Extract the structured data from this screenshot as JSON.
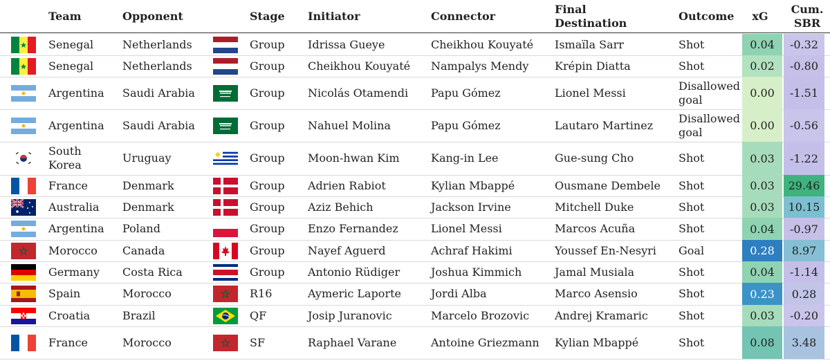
{
  "headers": {
    "team": "Team",
    "opponent": "Opponent",
    "stage": "Stage",
    "initiator": "Initiator",
    "connector": "Connector",
    "final_destination": "Final Destination",
    "outcome": "Outcome",
    "xg": "xG",
    "cum_sbr": "Cum. SBR"
  },
  "rows": [
    {
      "team": "Senegal",
      "team_flag": "senegal-flag-icon",
      "opponent": "Netherlands",
      "opp_flag": "netherlands-flag-icon",
      "stage": "Group",
      "initiator": "Idrissa Gueye",
      "connector": "Cheikhou Kouyaté",
      "final_destination": "Ismaïla Sarr",
      "outcome": "Shot",
      "xg": "0.04",
      "cum_sbr": "-0.32",
      "xg_color": "#8fd3b2",
      "sbr_color": "#c9c4ea"
    },
    {
      "team": "Senegal",
      "team_flag": "senegal-flag-icon",
      "opponent": "Netherlands",
      "opp_flag": "netherlands-flag-icon",
      "stage": "Group",
      "initiator": "Cheikhou Kouyaté",
      "connector": "Nampalys Mendy",
      "final_destination": "Krépin Diatta",
      "outcome": "Shot",
      "xg": "0.02",
      "cum_sbr": "-0.80",
      "xg_color": "#b2e2c0",
      "sbr_color": "#c6c0e8"
    },
    {
      "team": "Argentina",
      "team_flag": "argentina-flag-icon",
      "opponent": "Saudi Arabia",
      "opp_flag": "saudi-arabia-flag-icon",
      "stage": "Group",
      "initiator": "Nicolás Otamendi",
      "connector": "Papu Gómez",
      "final_destination": "Lionel Messi",
      "outcome": "Disallowed goal",
      "xg": "0.00",
      "cum_sbr": "-1.51",
      "xg_color": "#d6efc8",
      "sbr_color": "#c4bfe8"
    },
    {
      "team": "Argentina",
      "team_flag": "argentina-flag-icon",
      "opponent": "Saudi Arabia",
      "opp_flag": "saudi-arabia-flag-icon",
      "stage": "Group",
      "initiator": "Nahuel Molina",
      "connector": "Papu Gómez",
      "final_destination": "Lautaro Martinez",
      "outcome": "Disallowed goal",
      "xg": "0.00",
      "cum_sbr": "-0.56",
      "xg_color": "#d6efc8",
      "sbr_color": "#c9c4ea"
    },
    {
      "team": "South Korea",
      "team_flag": "south-korea-flag-icon",
      "opponent": "Uruguay",
      "opp_flag": "uruguay-flag-icon",
      "stage": "Group",
      "initiator": "Moon-hwan Kim",
      "connector": "Kang-in Lee",
      "final_destination": "Gue-sung Cho",
      "outcome": "Shot",
      "xg": "0.03",
      "cum_sbr": "-1.22",
      "xg_color": "#a6dcbb",
      "sbr_color": "#c4bfe8"
    },
    {
      "team": "France",
      "team_flag": "france-flag-icon",
      "opponent": "Denmark",
      "opp_flag": "denmark-flag-icon",
      "stage": "Group",
      "initiator": "Adrien Rabiot",
      "connector": "Kylian Mbappé",
      "final_destination": "Ousmane Dembele",
      "outcome": "Shot",
      "xg": "0.03",
      "cum_sbr": "29.46",
      "xg_color": "#a6dcbb",
      "sbr_color": "#3fb37f"
    },
    {
      "team": "Australia",
      "team_flag": "australia-flag-icon",
      "opponent": "Denmark",
      "opp_flag": "denmark-flag-icon",
      "stage": "Group",
      "initiator": "Aziz Behich",
      "connector": "Jackson Irvine",
      "final_destination": "Mitchell Duke",
      "outcome": "Shot",
      "xg": "0.03",
      "cum_sbr": "10.15",
      "xg_color": "#a6dcbb",
      "sbr_color": "#7cbfd0"
    },
    {
      "team": "Argentina",
      "team_flag": "argentina-flag-icon",
      "opponent": "Poland",
      "opp_flag": "poland-flag-icon",
      "stage": "Group",
      "initiator": "Enzo Fernandez",
      "connector": "Lionel Messi",
      "final_destination": "Marcos Acuña",
      "outcome": "Shot",
      "xg": "0.04",
      "cum_sbr": "-0.97",
      "xg_color": "#8fd3b2",
      "sbr_color": "#c6c0e8"
    },
    {
      "team": "Morocco",
      "team_flag": "morocco-flag-icon",
      "opponent": "Canada",
      "opp_flag": "canada-flag-icon",
      "stage": "Group",
      "initiator": "Nayef Aguerd",
      "connector": "Achraf Hakimi",
      "final_destination": "Youssef En-Nesyri",
      "outcome": "Goal",
      "xg": "0.28",
      "cum_sbr": "8.97",
      "xg_color": "#2e7fc0",
      "sbr_color": "#86bfd3"
    },
    {
      "team": "Germany",
      "team_flag": "germany-flag-icon",
      "opponent": "Costa Rica",
      "opp_flag": "costa-rica-flag-icon",
      "stage": "Group",
      "initiator": "Antonio Rüdiger",
      "connector": "Joshua Kimmich",
      "final_destination": "Jamal Musiala",
      "outcome": "Shot",
      "xg": "0.04",
      "cum_sbr": "-1.14",
      "xg_color": "#8fd3b2",
      "sbr_color": "#c4bfe8"
    },
    {
      "team": "Spain",
      "team_flag": "spain-flag-icon",
      "opponent": "Morocco",
      "opp_flag": "morocco-flag-icon",
      "stage": "R16",
      "initiator": "Aymeric Laporte",
      "connector": "Jordi Alba",
      "final_destination": "Marco Asensio",
      "outcome": "Shot",
      "xg": "0.23",
      "cum_sbr": "0.28",
      "xg_color": "#3b93c8",
      "sbr_color": "#c2c5e8"
    },
    {
      "team": "Croatia",
      "team_flag": "croatia-flag-icon",
      "opponent": "Brazil",
      "opp_flag": "brazil-flag-icon",
      "stage": "QF",
      "initiator": "Josip Juranovic",
      "connector": "Marcelo Brozovic",
      "final_destination": "Andrej Kramaric",
      "outcome": "Shot",
      "xg": "0.03",
      "cum_sbr": "-0.20",
      "xg_color": "#a6dcbb",
      "sbr_color": "#c9c4ea"
    },
    {
      "team": "France",
      "team_flag": "france-flag-icon",
      "opponent": "Morocco",
      "opp_flag": "morocco-flag-icon",
      "stage": "SF",
      "initiator": "Raphael Varane",
      "connector": "Antoine Griezmann",
      "final_destination": "Kylian Mbappé",
      "outcome": "Shot",
      "xg": "0.08",
      "cum_sbr": "3.48",
      "xg_color": "#74c4b3",
      "sbr_color": "#a8c3e0"
    }
  ]
}
